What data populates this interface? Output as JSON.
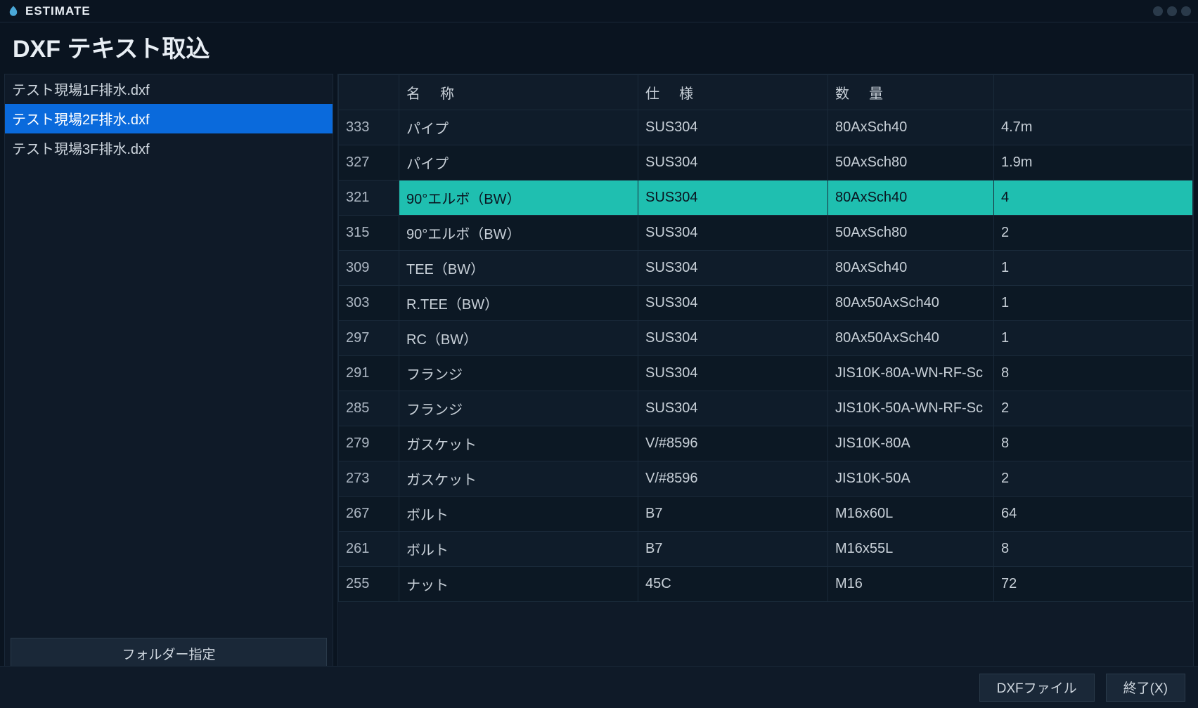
{
  "app": {
    "title": "ESTIMATE"
  },
  "page": {
    "title": "DXF テキスト取込"
  },
  "sidebar": {
    "folder_button": "フォルダー指定",
    "files": [
      {
        "name": "テスト現場1F排水.dxf",
        "selected": false
      },
      {
        "name": "テスト現場2F排水.dxf",
        "selected": true
      },
      {
        "name": "テスト現場3F排水.dxf",
        "selected": false
      }
    ]
  },
  "table": {
    "headers": {
      "id": "",
      "name": "名　称",
      "spec": "仕　様",
      "size": "数　量",
      "qty": ""
    },
    "rows": [
      {
        "id": "333",
        "name": "パイプ",
        "spec": "SUS304",
        "size": "80AxSch40",
        "qty": "4.7m",
        "selected": false
      },
      {
        "id": "327",
        "name": "パイプ",
        "spec": "SUS304",
        "size": "50AxSch80",
        "qty": "1.9m",
        "selected": false
      },
      {
        "id": "321",
        "name": "90°エルボ（BW）",
        "spec": "SUS304",
        "size": "80AxSch40",
        "qty": "4",
        "selected": true
      },
      {
        "id": "315",
        "name": "90°エルボ（BW）",
        "spec": "SUS304",
        "size": "50AxSch80",
        "qty": "2",
        "selected": false
      },
      {
        "id": "309",
        "name": "TEE（BW）",
        "spec": "SUS304",
        "size": "80AxSch40",
        "qty": "1",
        "selected": false
      },
      {
        "id": "303",
        "name": "R.TEE（BW）",
        "spec": "SUS304",
        "size": "80Ax50AxSch40",
        "qty": "1",
        "selected": false
      },
      {
        "id": "297",
        "name": "RC（BW）",
        "spec": "SUS304",
        "size": "80Ax50AxSch40",
        "qty": "1",
        "selected": false
      },
      {
        "id": "291",
        "name": "フランジ",
        "spec": "SUS304",
        "size": "JIS10K-80A-WN-RF-Sc",
        "qty": "8",
        "selected": false
      },
      {
        "id": "285",
        "name": "フランジ",
        "spec": "SUS304",
        "size": "JIS10K-50A-WN-RF-Sc",
        "qty": "2",
        "selected": false
      },
      {
        "id": "279",
        "name": "ガスケット",
        "spec": "V/#8596",
        "size": "JIS10K-80A",
        "qty": "8",
        "selected": false
      },
      {
        "id": "273",
        "name": "ガスケット",
        "spec": "V/#8596",
        "size": "JIS10K-50A",
        "qty": "2",
        "selected": false
      },
      {
        "id": "267",
        "name": "ボルト",
        "spec": "B7",
        "size": "M16x60L",
        "qty": "64",
        "selected": false
      },
      {
        "id": "261",
        "name": "ボルト",
        "spec": "B7",
        "size": "M16x55L",
        "qty": "8",
        "selected": false
      },
      {
        "id": "255",
        "name": "ナット",
        "spec": "45C",
        "size": "M16",
        "qty": "72",
        "selected": false
      }
    ]
  },
  "footer": {
    "dxf_button": "DXFファイル",
    "exit_button": "終了(X)"
  },
  "colors": {
    "background": "#0a1420",
    "panel": "#0f1a28",
    "border": "#1a2838",
    "text": "#c8d0d8",
    "text_bright": "#e8eef4",
    "file_selected_bg": "#0a6adc",
    "row_selected_bg": "#1fbfb0",
    "row_selected_fg": "#0a1420",
    "button_bg": "#1a2838"
  }
}
